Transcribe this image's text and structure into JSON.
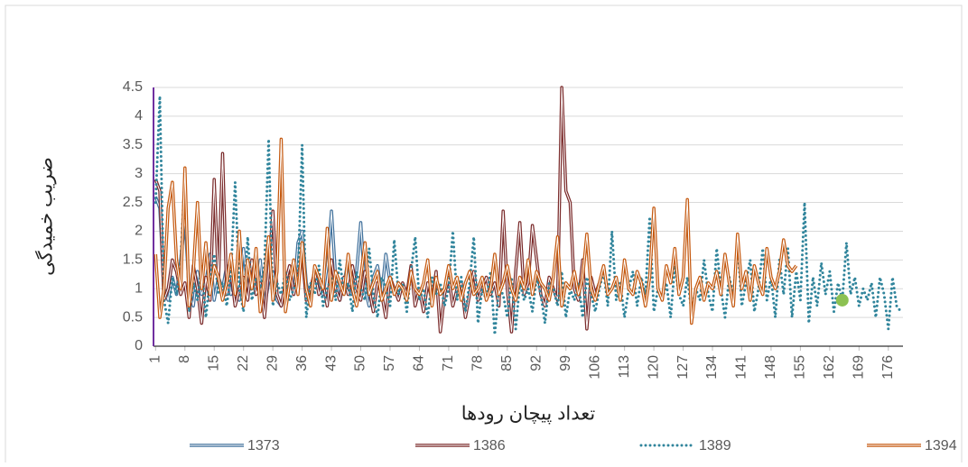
{
  "chart_data": {
    "type": "line",
    "x_label": "تعداد پیچان رودها",
    "y_label": "ضریب خمیدگی",
    "x": [
      1,
      2,
      3,
      4,
      5,
      6,
      7,
      8,
      9,
      10,
      11,
      12,
      13,
      14,
      15,
      16,
      17,
      18,
      19,
      20,
      21,
      22,
      23,
      24,
      25,
      26,
      27,
      28,
      29,
      30,
      31,
      32,
      33,
      34,
      35,
      36,
      37,
      38,
      39,
      40,
      41,
      42,
      43,
      44,
      45,
      46,
      47,
      48,
      49,
      50,
      51,
      52,
      53,
      54,
      55,
      56,
      57,
      58,
      59,
      60,
      61,
      62,
      63,
      64,
      65,
      66,
      67,
      68,
      69,
      70,
      71,
      72,
      73,
      74,
      75,
      76,
      77,
      78,
      79,
      80,
      81,
      82,
      83,
      84,
      85,
      86,
      87,
      88,
      89,
      90,
      91,
      92,
      93,
      94,
      95,
      96,
      97,
      98,
      99,
      100,
      101,
      102,
      103,
      104,
      105,
      106,
      107,
      108,
      109,
      110,
      111,
      112,
      113,
      114,
      115,
      116,
      117,
      118,
      119,
      120,
      121,
      122,
      123,
      124,
      125,
      126,
      127,
      128,
      129,
      130,
      131,
      132,
      133,
      134,
      135,
      136,
      137,
      138,
      139,
      140,
      141,
      142,
      143,
      144,
      145,
      146,
      147,
      148,
      149,
      150,
      151,
      152,
      153,
      154,
      155,
      156,
      157,
      158,
      159,
      160,
      161,
      162,
      163,
      164,
      165,
      166,
      167,
      168,
      169,
      170,
      171,
      172,
      173,
      174,
      175,
      176,
      177,
      178,
      179
    ],
    "xlim": [
      0.5,
      179.5
    ],
    "xticks": [
      1,
      8,
      15,
      22,
      29,
      36,
      43,
      50,
      57,
      64,
      71,
      78,
      85,
      92,
      99,
      106,
      113,
      120,
      127,
      134,
      141,
      148,
      155,
      162,
      169,
      176
    ],
    "ylim": [
      0,
      4.5
    ],
    "yticks": [
      0,
      0.5,
      1,
      1.5,
      2,
      2.5,
      3,
      3.5,
      4,
      4.5
    ],
    "grid": true,
    "legend": "bottom",
    "series": [
      {
        "name": "1373",
        "color": "#41719c",
        "style": "double",
        "values": [
          2.6,
          2.4,
          1.0,
          0.8,
          1.2,
          0.9,
          1.5,
          2.2,
          1.0,
          0.7,
          1.3,
          0.9,
          1.1,
          1.6,
          0.8,
          1.2,
          1.0,
          1.4,
          0.9,
          1.1,
          0.8,
          1.7,
          1.0,
          1.2,
          0.9,
          1.5,
          0.7,
          1.1,
          1.3,
          0.8,
          0.7,
          1.0,
          1.2,
          0.9,
          1.8,
          2.0,
          1.1,
          0.8,
          1.3,
          1.0,
          0.9,
          1.4,
          2.35,
          1.2,
          0.8,
          1.1,
          1.5,
          0.9,
          1.3,
          2.15,
          1.0,
          0.7,
          1.2,
          1.4,
          0.9,
          1.6,
          1.1,
          null,
          null,
          null,
          null,
          null,
          null,
          null,
          null,
          null,
          null,
          null,
          null,
          null,
          null,
          null,
          null,
          null,
          null,
          null,
          null,
          null,
          null,
          null,
          null,
          null,
          null,
          null,
          null,
          null,
          null,
          null,
          null,
          null,
          null,
          null,
          null,
          null,
          null,
          null,
          null,
          null,
          null,
          null,
          null,
          null,
          null,
          null,
          null,
          null,
          null,
          null,
          null,
          null,
          null,
          null,
          null,
          null,
          null,
          null,
          null,
          null,
          null,
          null,
          null,
          null,
          null,
          null,
          null,
          null,
          null,
          null,
          null,
          null,
          null,
          null,
          null,
          null,
          null,
          null,
          null,
          null,
          null,
          null,
          null,
          null,
          null,
          null,
          null,
          null,
          null,
          null,
          null,
          null,
          null,
          null,
          null,
          null,
          null,
          null,
          null,
          null,
          null,
          null,
          null,
          null,
          null,
          null,
          null,
          null,
          null,
          null,
          null,
          null,
          null,
          null,
          null,
          null,
          null,
          null,
          null,
          null,
          null
        ]
      },
      {
        "name": "1386",
        "color": "#7b2c2c",
        "style": "double",
        "values": [
          2.9,
          2.7,
          0.8,
          1.0,
          1.5,
          1.3,
          0.9,
          1.1,
          0.5,
          1.4,
          1.0,
          0.4,
          1.2,
          0.8,
          2.9,
          1.1,
          3.35,
          0.9,
          1.3,
          0.7,
          1.0,
          1.2,
          0.8,
          1.5,
          0.9,
          1.1,
          0.5,
          1.3,
          2.35,
          0.9,
          0.7,
          1.1,
          1.4,
          0.9,
          1.2,
          1.6,
          0.8,
          1.0,
          1.3,
          0.9,
          1.1,
          0.7,
          1.5,
          1.0,
          0.8,
          1.2,
          0.9,
          1.4,
          1.0,
          0.8,
          1.3,
          1.0,
          0.6,
          1.1,
          0.9,
          0.5,
          1.2,
          1.0,
          0.8,
          1.1,
          0.9,
          1.4,
          0.7,
          1.0,
          0.6,
          1.1,
          0.8,
          1.3,
          0.25,
          0.9,
          1.2,
          0.7,
          1.0,
          1.1,
          0.5,
          0.9,
          1.3,
          0.8,
          1.0,
          1.2,
          0.9,
          1.1,
          0.7,
          2.35,
          1.0,
          0.25,
          1.3,
          2.15,
          0.9,
          1.1,
          2.1,
          1.5,
          0.9,
          0.7,
          1.2,
          1.0,
          0.8,
          4.5,
          2.7,
          2.5,
          1.0,
          0.8,
          1.5,
          0.3,
          1.2,
          0.9,
          1.1,
          null,
          null,
          null,
          null,
          null,
          null,
          null,
          null,
          null,
          null,
          null,
          null,
          null,
          null,
          null,
          null,
          null,
          null,
          null,
          null,
          null,
          null,
          null,
          null,
          null,
          null,
          null,
          null,
          null,
          null,
          null,
          null,
          null,
          null,
          null,
          null,
          null,
          null,
          null,
          null,
          null,
          null,
          null,
          null,
          null,
          null,
          null,
          null,
          null,
          null,
          null,
          null,
          null,
          null,
          null,
          null,
          null,
          null,
          null,
          null,
          null,
          null,
          null,
          null,
          null,
          null,
          null,
          null,
          null,
          null,
          null,
          null
        ]
      },
      {
        "name": "1389",
        "color": "#31859c",
        "style": "dotted",
        "values": [
          2.5,
          4.35,
          0.8,
          0.4,
          1.2,
          0.9,
          1.5,
          3.0,
          0.6,
          1.1,
          0.8,
          1.4,
          0.5,
          1.2,
          1.6,
          0.9,
          1.1,
          0.7,
          1.3,
          2.85,
          1.0,
          0.6,
          1.9,
          0.8,
          1.2,
          1.0,
          1.4,
          3.6,
          0.7,
          1.1,
          0.9,
          1.3,
          0.8,
          1.0,
          1.2,
          3.5,
          0.5,
          1.1,
          0.9,
          1.4,
          0.7,
          1.0,
          1.2,
          0.8,
          1.5,
          0.9,
          1.1,
          0.6,
          1.3,
          1.0,
          0.8,
          1.7,
          0.9,
          0.5,
          1.2,
          1.0,
          0.7,
          1.85,
          0.9,
          1.1,
          0.6,
          1.3,
          1.9,
          0.8,
          1.0,
          0.5,
          1.2,
          0.9,
          1.1,
          0.7,
          1.0,
          2.0,
          0.8,
          1.2,
          0.6,
          1.1,
          1.9,
          0.4,
          1.0,
          0.8,
          1.3,
          0.2,
          1.0,
          0.9,
          0.5,
          1.2,
          0.3,
          1.1,
          0.8,
          1.0,
          0.6,
          1.2,
          0.9,
          0.4,
          1.1,
          1.0,
          0.7,
          1.3,
          0.5,
          1.0,
          0.8,
          1.1,
          0.5,
          1.2,
          0.9,
          0.6,
          1.0,
          1.3,
          0.7,
          2.0,
          0.8,
          1.1,
          0.5,
          1.0,
          1.3,
          0.7,
          1.2,
          0.9,
          2.25,
          0.6,
          1.0,
          0.8,
          1.1,
          0.5,
          1.4,
          0.9,
          0.7,
          1.2,
          0.6,
          1.0,
          0.8,
          1.5,
          0.9,
          0.6,
          1.7,
          1.0,
          0.5,
          1.2,
          0.9,
          1.8,
          0.7,
          1.1,
          1.5,
          0.6,
          1.0,
          1.7,
          0.8,
          1.2,
          0.5,
          1.5,
          0.9,
          1.7,
          0.5,
          1.3,
          0.8,
          2.5,
          0.4,
          1.2,
          0.7,
          1.45,
          0.9,
          1.3,
          0.6,
          1.1,
          0.8,
          1.8,
          0.9,
          1.2,
          0.7,
          1.0,
          0.8,
          1.1,
          0.5,
          1.2,
          0.9,
          0.3,
          1.2,
          0.7,
          0.6
        ]
      },
      {
        "name": "1394",
        "color": "#c55a11",
        "style": "double",
        "values": [
          1.6,
          0.5,
          1.0,
          2.4,
          2.85,
          1.5,
          1.0,
          3.1,
          0.7,
          1.3,
          2.5,
          1.0,
          1.8,
          0.9,
          1.4,
          1.2,
          0.8,
          1.1,
          1.6,
          0.9,
          2.0,
          0.7,
          1.5,
          1.0,
          1.7,
          0.6,
          1.2,
          1.9,
          0.8,
          1.3,
          3.6,
          0.6,
          1.1,
          1.5,
          0.9,
          1.8,
          1.0,
          0.7,
          1.4,
          1.2,
          1.0,
          2.05,
          0.8,
          1.3,
          1.1,
          0.9,
          1.6,
          1.0,
          0.7,
          1.2,
          1.8,
          0.9,
          1.1,
          1.3,
          0.8,
          1.0,
          1.2,
          0.9,
          1.1,
          1.0,
          0.8,
          1.3,
          1.0,
          0.9,
          1.1,
          1.5,
          0.7,
          1.2,
          0.9,
          1.0,
          1.4,
          1.0,
          1.2,
          0.8,
          1.1,
          1.3,
          0.9,
          1.0,
          1.2,
          0.8,
          1.0,
          1.6,
          0.9,
          1.1,
          1.4,
          1.0,
          0.8,
          1.2,
          1.0,
          1.5,
          0.9,
          1.3,
          1.1,
          1.0,
          0.8,
          1.2,
          1.9,
          0.7,
          1.1,
          1.0,
          1.3,
          0.9,
          1.2,
          1.95,
          1.0,
          0.8,
          1.1,
          1.4,
          0.9,
          1.0,
          1.2,
          0.8,
          1.5,
          1.0,
          0.9,
          1.3,
          1.1,
          0.7,
          1.2,
          2.4,
          1.0,
          0.8,
          1.4,
          1.1,
          1.7,
          0.9,
          1.2,
          2.55,
          0.4,
          1.0,
          1.2,
          0.8,
          1.1,
          1.0,
          1.3,
          0.9,
          1.6,
          1.1,
          0.7,
          1.95,
          1.0,
          1.3,
          0.8,
          1.4,
          1.1,
          0.9,
          1.7,
          1.2,
          1.0,
          1.3,
          1.85,
          1.4,
          1.3,
          1.4,
          null,
          null,
          null,
          null,
          null,
          null,
          null,
          null,
          null,
          null,
          null,
          null,
          null,
          null,
          null,
          null,
          null,
          null,
          null,
          null,
          null,
          null,
          null,
          null,
          null
        ]
      }
    ],
    "highlight_point": {
      "x": 165,
      "y": 0.8,
      "color": "#8cc152"
    }
  }
}
